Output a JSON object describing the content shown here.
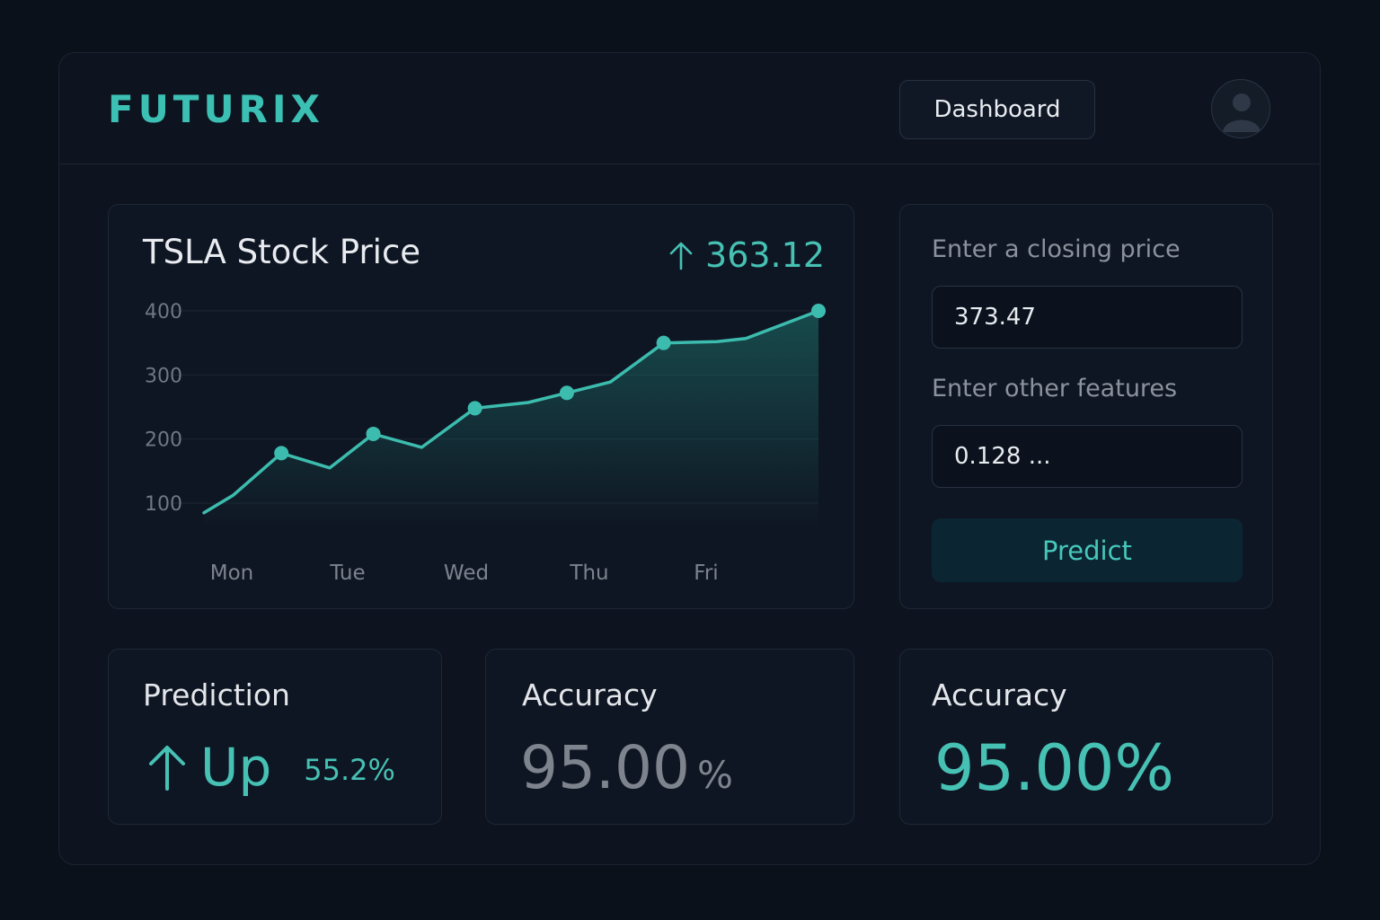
{
  "header": {
    "logo": "FUTURIX",
    "nav_button": "Dashboard"
  },
  "chart_card": {
    "title": "TSLA Stock Price",
    "price": "363.12"
  },
  "chart_data": {
    "type": "line",
    "title": "TSLA Stock Price",
    "categories": [
      "Mon",
      "Tue",
      "Wed",
      "Thu",
      "Fri"
    ],
    "y_ticks": [
      "400",
      "300",
      "200",
      "100"
    ],
    "ylim": [
      60,
      400
    ],
    "x": [
      0,
      0.3,
      0.8,
      1.3,
      1.75,
      2.25,
      2.8,
      3.35,
      3.75,
      4.2,
      4.75,
      5.3,
      5.6,
      6.35
    ],
    "values": [
      85,
      112,
      178,
      155,
      208,
      187,
      248,
      257,
      272,
      289,
      350,
      352,
      357,
      400
    ],
    "markers": [
      2,
      4,
      6,
      8,
      10,
      13
    ],
    "grid": true,
    "fill": "area",
    "color": "#3cbcae"
  },
  "form": {
    "closing_label": "Enter a closing price",
    "closing_value": "373.47",
    "features_label": "Enter other features",
    "features_value": "0.128 ...",
    "predict_button": "Predict"
  },
  "prediction_card": {
    "title": "Prediction",
    "direction": "Up",
    "percent": "55.2%"
  },
  "accuracy_card_1": {
    "title": "Accuracy",
    "value": "95.00",
    "unit": "%"
  },
  "accuracy_card_2": {
    "title": "Accuracy",
    "value": "95.00%"
  },
  "colors": {
    "accent": "#46c1b4",
    "background": "#0b111b"
  }
}
